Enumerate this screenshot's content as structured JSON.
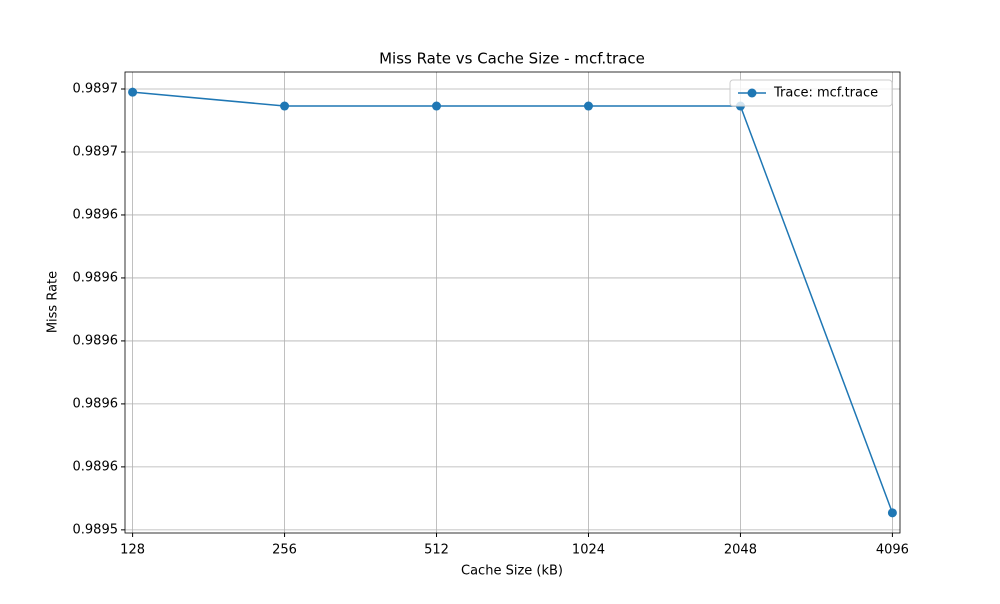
{
  "chart_data": {
    "type": "line",
    "title": "Miss Rate vs Cache Size - mcf.trace",
    "x_label": "Cache Size (kB)",
    "y_label": "Miss Rate",
    "categories": [
      "128",
      "256",
      "512",
      "1024",
      "2048",
      "4096"
    ],
    "series": [
      {
        "name": "Trace: mcf.trace",
        "color": "#1f77b4",
        "values": [
          0.989679,
          0.9896746,
          0.9896746,
          0.9896746,
          0.9896746,
          0.9895454
        ]
      }
    ],
    "ylim": [
      0.989539,
      0.9896854
    ],
    "yticks": [
      {
        "value": 0.98954,
        "label": "0.9895"
      },
      {
        "value": 0.98956,
        "label": "0.9896"
      },
      {
        "value": 0.98958,
        "label": "0.9896"
      },
      {
        "value": 0.9896,
        "label": "0.9896"
      },
      {
        "value": 0.98962,
        "label": "0.9896"
      },
      {
        "value": 0.98964,
        "label": "0.9896"
      },
      {
        "value": 0.98966,
        "label": "0.9897"
      },
      {
        "value": 0.98968,
        "label": "0.9897"
      }
    ],
    "grid": true,
    "legend": "upper-right"
  }
}
